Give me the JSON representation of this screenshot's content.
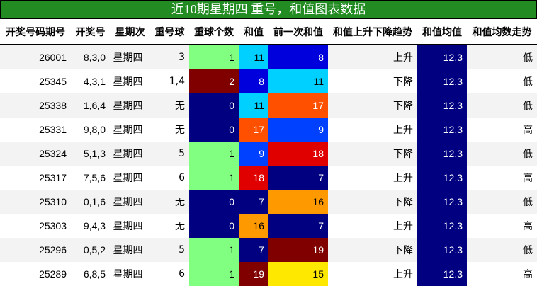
{
  "title": "近10期星期四 重号，和值图表数据",
  "headers": [
    "开奖号码期号",
    "开奖号",
    "星期次",
    "重号球",
    "重球个数",
    "和值",
    "前一次和值",
    "和值上升下降趋势",
    "和值均值",
    "和值均数走势"
  ],
  "rows": [
    {
      "period": "26001",
      "numbers": "8,3,0",
      "weekday": "星期四",
      "repeat": "3",
      "count": "1",
      "sum": "11",
      "prev_sum": "8",
      "trend": "上升",
      "avg": "12.3",
      "avg_trend": "低"
    },
    {
      "period": "25345",
      "numbers": "4,3,1",
      "weekday": "星期四",
      "repeat": "1,4",
      "count": "2",
      "sum": "8",
      "prev_sum": "11",
      "trend": "下降",
      "avg": "12.3",
      "avg_trend": "低"
    },
    {
      "period": "25338",
      "numbers": "1,6,4",
      "weekday": "星期四",
      "repeat": "无",
      "count": "0",
      "sum": "11",
      "prev_sum": "17",
      "trend": "下降",
      "avg": "12.3",
      "avg_trend": "低"
    },
    {
      "period": "25331",
      "numbers": "9,8,0",
      "weekday": "星期四",
      "repeat": "无",
      "count": "0",
      "sum": "17",
      "prev_sum": "9",
      "trend": "上升",
      "avg": "12.3",
      "avg_trend": "高"
    },
    {
      "period": "25324",
      "numbers": "5,1,3",
      "weekday": "星期四",
      "repeat": "5",
      "count": "1",
      "sum": "9",
      "prev_sum": "18",
      "trend": "下降",
      "avg": "12.3",
      "avg_trend": "低"
    },
    {
      "period": "25317",
      "numbers": "7,5,6",
      "weekday": "星期四",
      "repeat": "6",
      "count": "1",
      "sum": "18",
      "prev_sum": "7",
      "trend": "上升",
      "avg": "12.3",
      "avg_trend": "高"
    },
    {
      "period": "25310",
      "numbers": "0,1,6",
      "weekday": "星期四",
      "repeat": "无",
      "count": "0",
      "sum": "7",
      "prev_sum": "16",
      "trend": "下降",
      "avg": "12.3",
      "avg_trend": "低"
    },
    {
      "period": "25303",
      "numbers": "9,4,3",
      "weekday": "星期四",
      "repeat": "无",
      "count": "0",
      "sum": "16",
      "prev_sum": "7",
      "trend": "上升",
      "avg": "12.3",
      "avg_trend": "高"
    },
    {
      "period": "25296",
      "numbers": "0,5,2",
      "weekday": "星期四",
      "repeat": "5",
      "count": "1",
      "sum": "7",
      "prev_sum": "19",
      "trend": "下降",
      "avg": "12.3",
      "avg_trend": "低"
    },
    {
      "period": "25289",
      "numbers": "6,8,5",
      "weekday": "星期四",
      "repeat": "6",
      "count": "1",
      "sum": "19",
      "prev_sum": "15",
      "trend": "上升",
      "avg": "12.3",
      "avg_trend": "高"
    }
  ],
  "colors": {
    "title_bg": "#228b22",
    "avg_bg": "#000080",
    "count": {
      "0": "#000080",
      "1": "#80ff80",
      "2": "#800000"
    },
    "sum": {
      "7": "#000080",
      "8": "#0000dd",
      "9": "#0040ff",
      "11": "#00d0ff",
      "15": "#ffe800",
      "16": "#ff9900",
      "17": "#ff5000",
      "18": "#e00000",
      "19": "#800000"
    },
    "light": [
      "#80ff80",
      "#00d0ff",
      "#ffe800",
      "#ff9900"
    ]
  }
}
